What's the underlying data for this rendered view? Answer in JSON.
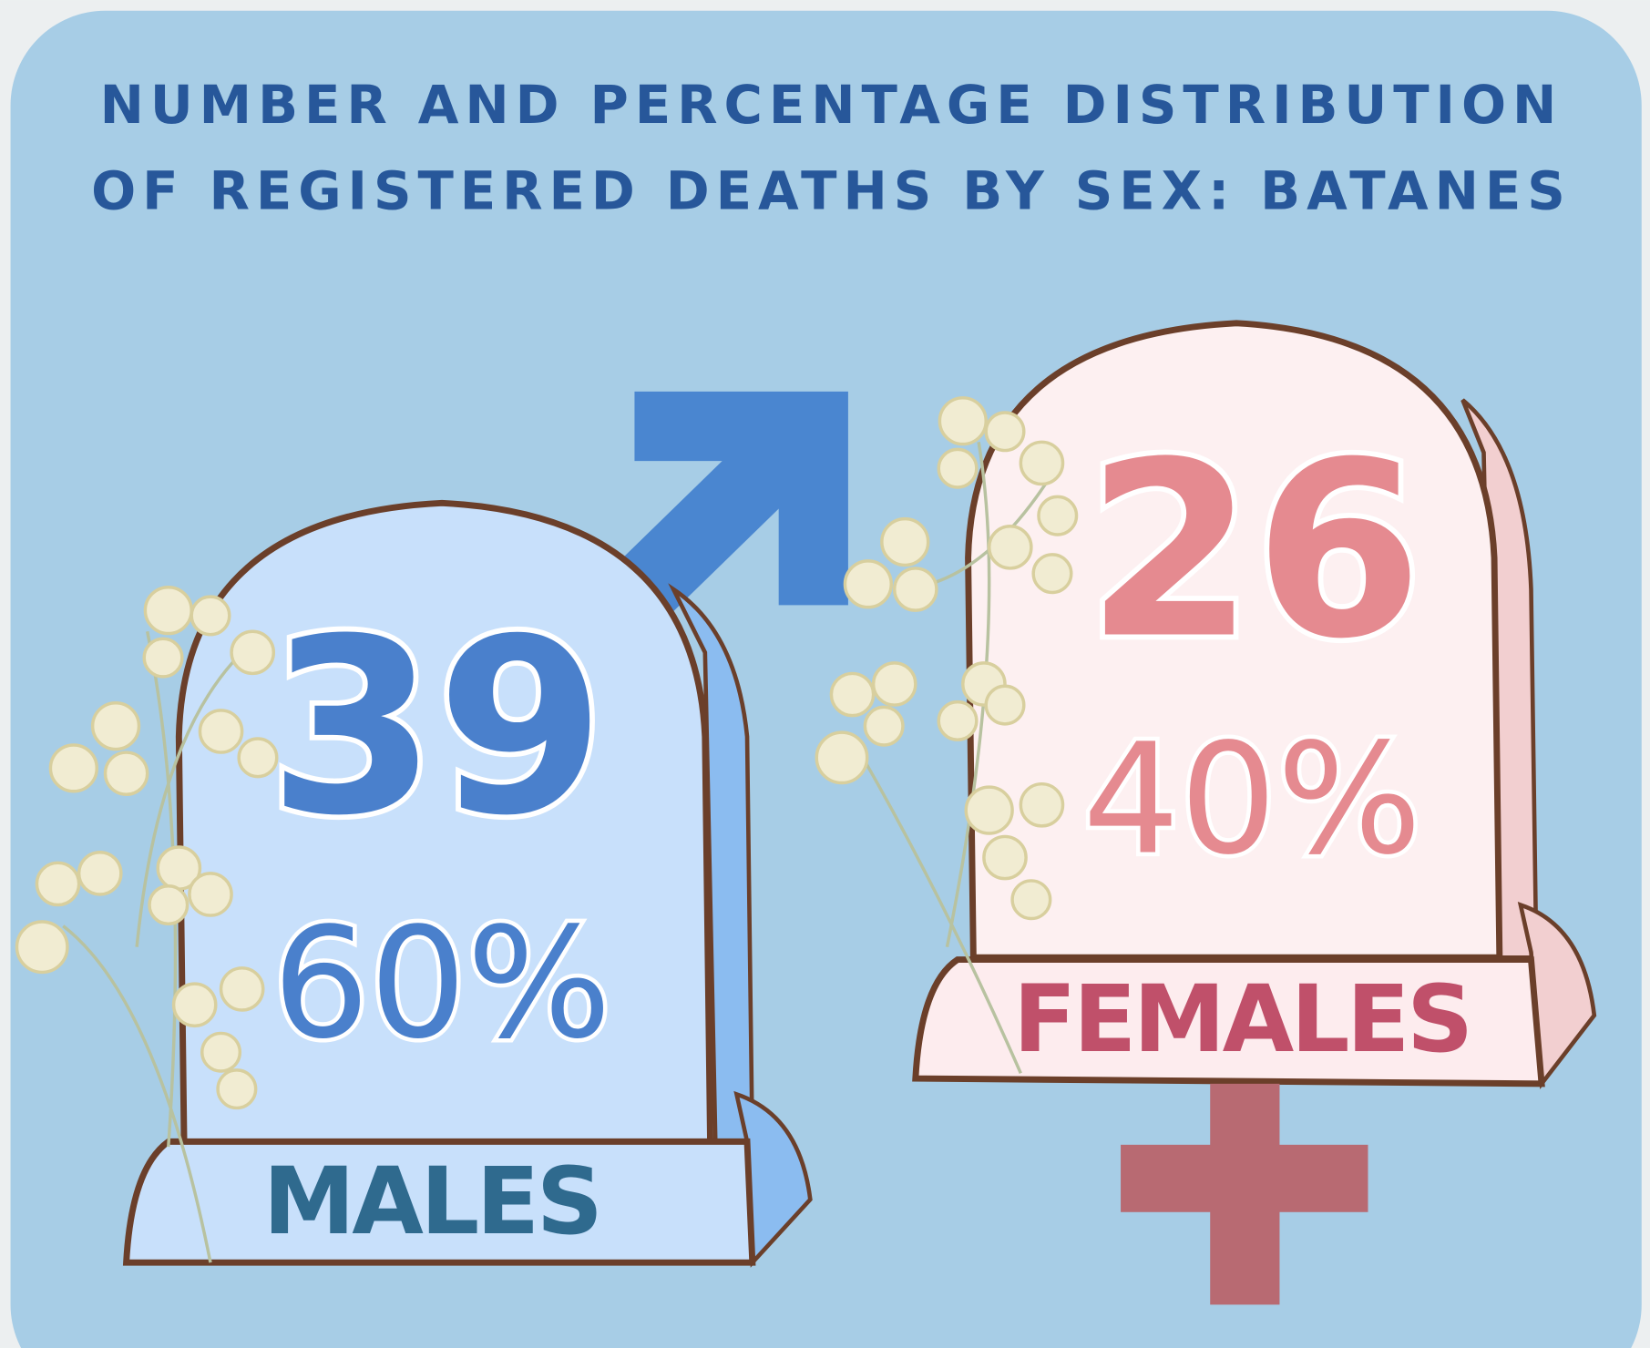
{
  "title": {
    "line1": "NUMBER AND PERCENTAGE DISTRIBUTION",
    "line2": "OF REGISTERED DEATHS BY SEX: BATANES"
  },
  "groups": [
    {
      "label": "MALES",
      "count": 39,
      "percent": "60%"
    },
    {
      "label": "FEMALES",
      "count": 26,
      "percent": "40%"
    }
  ]
}
